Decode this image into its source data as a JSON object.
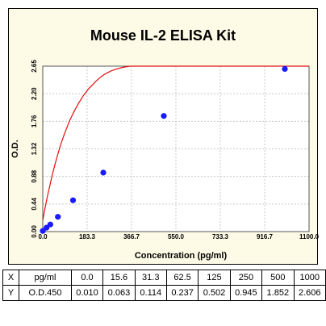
{
  "chart_data": {
    "type": "scatter",
    "title": "Mouse IL-2 ELISA Kit",
    "xlabel": "Concentration (pg/ml)",
    "ylabel": "O.D.",
    "xlim": [
      0,
      1100
    ],
    "ylim": [
      0,
      2.65
    ],
    "x_ticks": [
      "0.0",
      "183.3",
      "366.7",
      "550.0",
      "733.3",
      "916.7",
      "1100.0"
    ],
    "y_ticks": [
      "0.00",
      "0.44",
      "0.88",
      "1.32",
      "1.76",
      "2.20",
      "2.65"
    ],
    "grid": true,
    "series": [
      {
        "x": [
          0.0,
          15.6,
          31.3,
          62.5,
          125,
          250,
          500,
          1000
        ],
        "y": [
          0.01,
          0.063,
          0.114,
          0.237,
          0.502,
          0.945,
          1.852,
          2.606
        ]
      }
    ],
    "fit_curve": {
      "x": [
        0,
        10,
        20,
        30,
        40,
        50,
        60,
        70,
        80,
        90,
        100,
        110,
        120,
        130,
        140,
        150,
        160,
        170,
        180,
        190,
        200,
        220,
        240,
        260,
        280,
        300,
        330,
        360,
        400,
        450,
        500,
        550,
        600,
        650,
        700,
        800,
        900,
        1000,
        1100
      ],
      "y": [
        0.18,
        0.39,
        0.58,
        0.75,
        0.92,
        1.07,
        1.21,
        1.34,
        1.46,
        1.57,
        1.67,
        1.77,
        1.85,
        1.93,
        2.0,
        2.07,
        2.13,
        2.19,
        2.24,
        2.29,
        2.33,
        2.41,
        2.48,
        2.53,
        2.57,
        2.6,
        2.63,
        2.65,
        2.67,
        2.69,
        2.7,
        2.7,
        2.71,
        2.71,
        2.71,
        2.71,
        2.71,
        2.71,
        2.71
      ]
    },
    "colors": {
      "points": "#1a1aff",
      "curve": "#e01010",
      "grid": "#c8c8c8",
      "background": "#fdfbe6"
    }
  },
  "table": {
    "rows": [
      [
        "X",
        "pg/ml",
        "0.0",
        "15.6",
        "31.3",
        "62.5",
        "125",
        "250",
        "500",
        "1000"
      ],
      [
        "Y",
        "O.D.450",
        "0.010",
        "0.063",
        "0.114",
        "0.237",
        "0.502",
        "0.945",
        "1.852",
        "2.606"
      ]
    ]
  }
}
